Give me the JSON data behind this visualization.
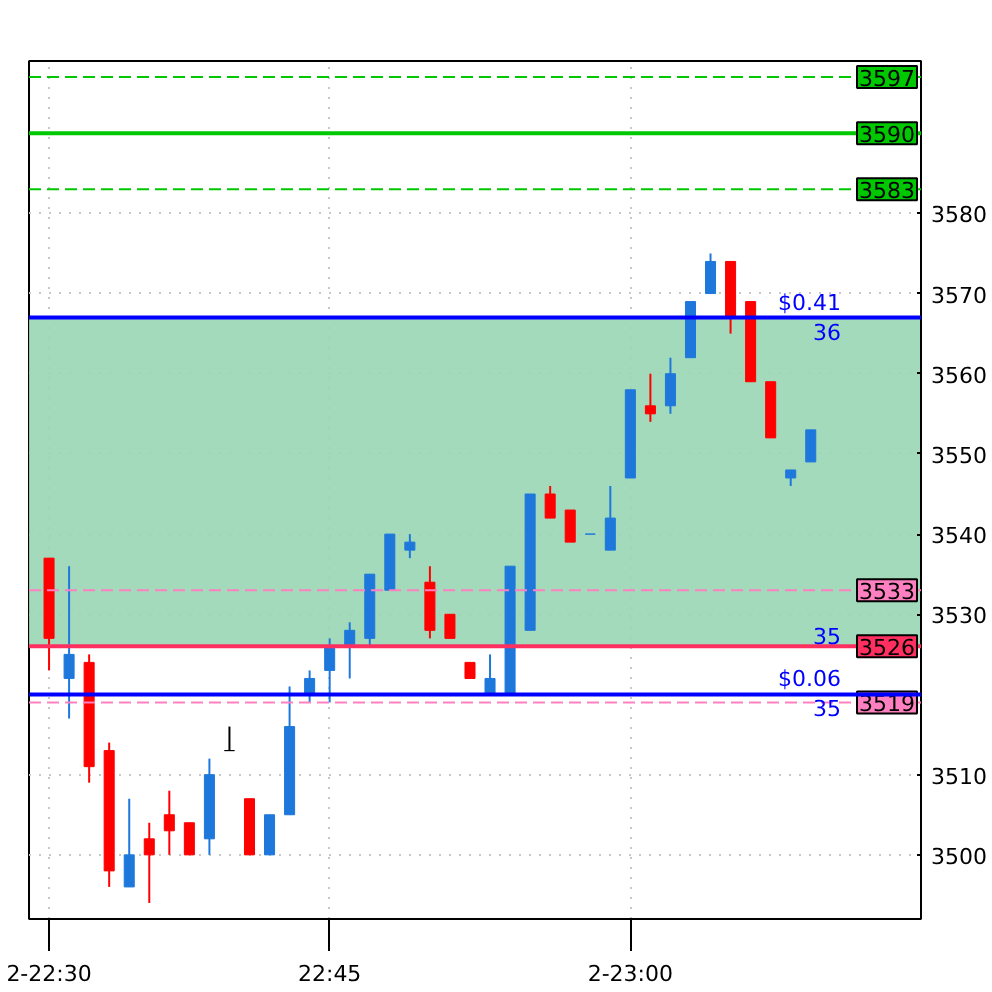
{
  "chart_data": {
    "type": "candlestick",
    "categories": [
      "2-22:30",
      null,
      null,
      null,
      null,
      null,
      null,
      null,
      null,
      null,
      null,
      null,
      null,
      null,
      "22:45",
      null,
      null,
      null,
      null,
      null,
      null,
      null,
      null,
      null,
      null,
      null,
      null,
      null,
      null,
      "2-23:00",
      null,
      null,
      null,
      null,
      null,
      null,
      null,
      null,
      null
    ],
    "ohlc": [
      [
        3537,
        3537,
        3523,
        3527
      ],
      [
        3522,
        3536,
        3517,
        3525
      ],
      [
        3524,
        3525,
        3509,
        3511
      ],
      [
        3513,
        3514,
        3496,
        3498
      ],
      [
        3496,
        3507,
        3496,
        3500
      ],
      [
        3502,
        3504,
        3494,
        3500
      ],
      [
        3505,
        3508,
        3500,
        3503
      ],
      [
        3504,
        3504,
        3500,
        3500
      ],
      [
        3502,
        3512,
        3500,
        3510
      ],
      [
        3513,
        3516,
        3513,
        3513
      ],
      [
        3507,
        3507,
        3500,
        3500
      ],
      [
        3500,
        3505,
        3500,
        3505
      ],
      [
        3505,
        3521,
        3505,
        3516
      ],
      [
        3520,
        3523,
        3519,
        3522
      ],
      [
        3523,
        3527,
        3519,
        3526
      ],
      [
        3526,
        3529,
        3522,
        3528
      ],
      [
        3527,
        3535,
        3526,
        3535
      ],
      [
        3533,
        3540,
        3533,
        3540
      ],
      [
        3538,
        3540,
        3537,
        3539
      ],
      [
        3534,
        3536,
        3527,
        3528
      ],
      [
        3530,
        3530,
        3527,
        3527
      ],
      [
        3524,
        3524,
        3522,
        3522
      ],
      [
        3520,
        3525,
        3520,
        3522
      ],
      [
        3520,
        3536,
        3520,
        3536
      ],
      [
        3528,
        3545,
        3528,
        3545
      ],
      [
        3545,
        3546,
        3542,
        3542
      ],
      [
        3543,
        3543,
        3539,
        3539
      ],
      [
        3540,
        3540,
        3540,
        3540
      ],
      [
        3538,
        3546,
        3538,
        3542
      ],
      [
        3547,
        3558,
        3547,
        3558
      ],
      [
        3556,
        3560,
        3554,
        3555
      ],
      [
        3556,
        3562,
        3555,
        3560
      ],
      [
        3562,
        3569,
        3562,
        3569
      ],
      [
        3570,
        3575,
        3570,
        3574
      ],
      [
        3574,
        3574,
        3565,
        3567
      ],
      [
        3569,
        3569,
        3559,
        3559
      ],
      [
        3559,
        3559,
        3552,
        3552
      ],
      [
        3547,
        3548,
        3546,
        3548
      ],
      [
        3549,
        3553,
        3549,
        3553
      ]
    ],
    "colors": [
      "#ff0000",
      "#1e78dc",
      "#ff0000",
      "#ff0000",
      "#1e78dc",
      "#ff0000",
      "#ff0000",
      "#ff0000",
      "#1e78dc",
      "#000000",
      "#ff0000",
      "#1e78dc",
      "#1e78dc",
      "#1e78dc",
      "#1e78dc",
      "#1e78dc",
      "#1e78dc",
      "#1e78dc",
      "#1e78dc",
      "#ff0000",
      "#ff0000",
      "#ff0000",
      "#1e78dc",
      "#1e78dc",
      "#1e78dc",
      "#ff0000",
      "#ff0000",
      "#1e78dc",
      "#1e78dc",
      "#1e78dc",
      "#ff0000",
      "#1e78dc",
      "#1e78dc",
      "#1e78dc",
      "#ff0000",
      "#ff0000",
      "#ff0000",
      "#1e78dc",
      "#1e78dc"
    ],
    "ylim": [
      3492,
      3599
    ],
    "yticks": [
      3500,
      3510,
      3530,
      3540,
      3550,
      3560,
      3570,
      3580
    ],
    "grid": true,
    "ref_lines": [
      {
        "axis": "y",
        "value": 3597,
        "label": "3597",
        "color": "#00c800",
        "line_style": "dashed"
      },
      {
        "axis": "y",
        "value": 3590,
        "label": "3590",
        "color": "#00c800",
        "line_style": "solid"
      },
      {
        "axis": "y",
        "value": 3583,
        "label": "3583",
        "color": "#00c800",
        "line_style": "dashed"
      },
      {
        "axis": "y",
        "value": 3533,
        "label": "3533",
        "color": "#ff80c0",
        "line_style": "dashed"
      },
      {
        "axis": "y",
        "value": 3526,
        "label": "3526",
        "color": "#ff3060",
        "line_style": "solid"
      },
      {
        "axis": "y",
        "value": 3519,
        "label": "3519",
        "color": "#ff80c0",
        "line_style": "dashed"
      },
      {
        "axis": "y",
        "value": 3567,
        "color": "#0000ff",
        "line_style": "solid"
      },
      {
        "axis": "y",
        "value": 3520,
        "color": "#0000ff",
        "line_style": "solid"
      }
    ],
    "bands": [
      {
        "axis": "y",
        "from": 3526,
        "to": 3567,
        "color": "#99d6b4"
      }
    ],
    "annotations": [
      {
        "text": "$0.41",
        "y": 3567
      },
      {
        "text": "$0.06",
        "y": 3520
      },
      {
        "text": "36",
        "y": 3567
      },
      {
        "text": "35",
        "y": 3526
      },
      {
        "text": "35",
        "y": 3520
      }
    ]
  }
}
